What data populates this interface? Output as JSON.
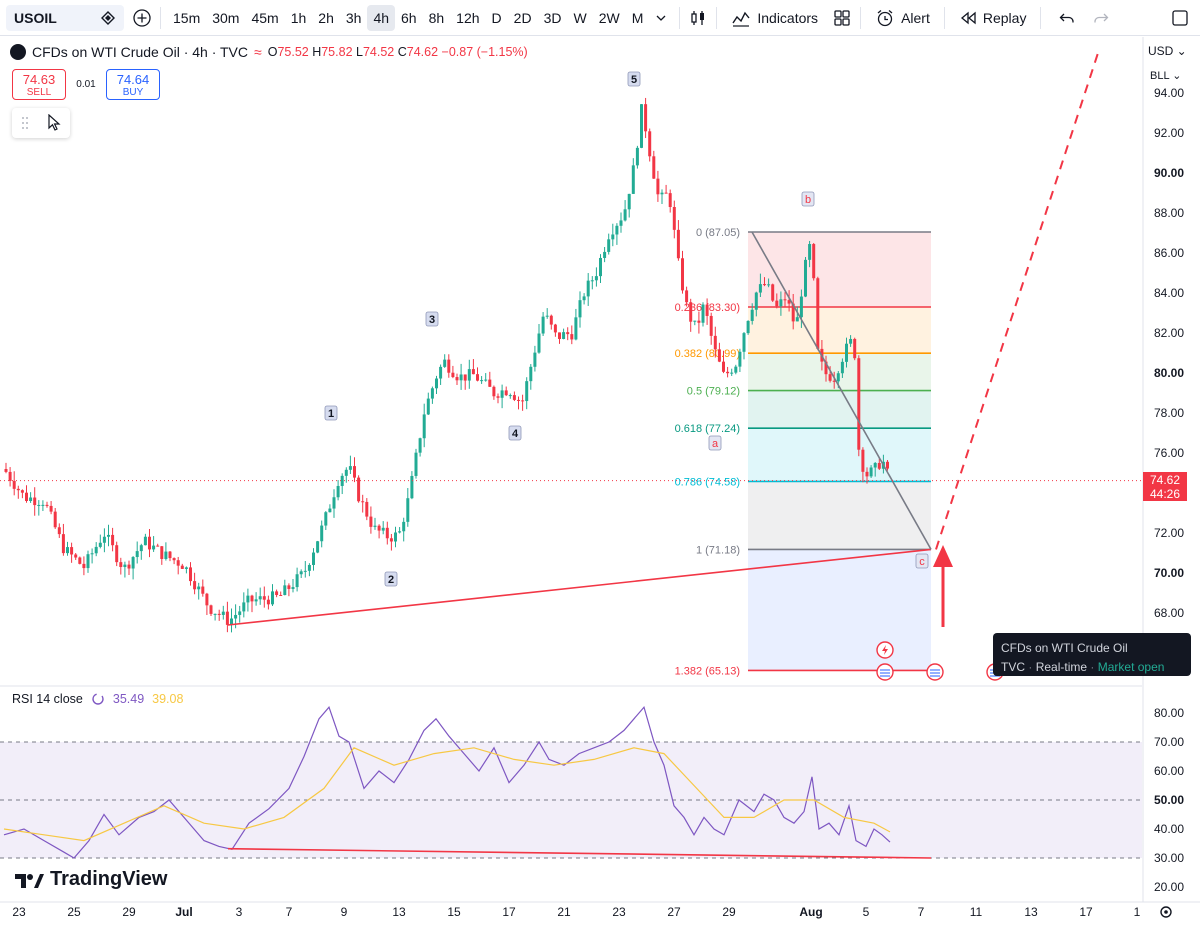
{
  "toolbar": {
    "symbol": "USOIL",
    "intervals": [
      "15m",
      "30m",
      "45m",
      "1h",
      "2h",
      "3h",
      "4h",
      "6h",
      "8h",
      "12h",
      "D",
      "2D",
      "3D",
      "W",
      "2W",
      "M"
    ],
    "active_interval": "4h",
    "indicators_label": "Indicators",
    "alert_label": "Alert",
    "replay_label": "Replay"
  },
  "legend": {
    "title": "CFDs on WTI Crude Oil · 4h · TVC",
    "o_label": "O",
    "o": "75.52",
    "h_label": "H",
    "h": "75.82",
    "l_label": "L",
    "l": "74.52",
    "c_label": "C",
    "c": "74.62",
    "change": "−0.87 (−1.15%)"
  },
  "trade": {
    "sell_price": "74.63",
    "sell_label": "SELL",
    "spread": "0.01",
    "buy_price": "74.64",
    "buy_label": "BUY"
  },
  "price_axis": {
    "currency": "USD",
    "unit": "BLL",
    "current_price": "74.62",
    "countdown": "44:26"
  },
  "rsi_legend": {
    "label": "RSI 14 close",
    "rsi_value": "35.49",
    "ma_value": "39.08"
  },
  "branding": {
    "logo_text": "TradingView"
  },
  "tooltip": {
    "name": "CFDs on WTI Crude Oil",
    "source": "TVC",
    "mode": "Real-time",
    "status": "Market open"
  },
  "colors": {
    "up": "#22ab94",
    "down": "#f23645",
    "rsi": "#7e57c2",
    "rsi_ma": "#f7c844",
    "accent": "#2962ff"
  },
  "chart_data": {
    "type": "candlestick",
    "symbol": "USOIL",
    "timeframe": "4h",
    "y_range": [
      64.0,
      96.0
    ],
    "y_ticks": [
      68,
      70,
      72,
      74,
      76,
      78,
      80,
      82,
      84,
      86,
      88,
      90,
      92,
      94
    ],
    "y_tick_labels": [
      "68.00",
      "70.00",
      "72.00",
      "74.00",
      "76.00",
      "78.00",
      "80.00",
      "82.00",
      "84.00",
      "86.00",
      "88.00",
      "90.00",
      "92.00",
      "94.00"
    ],
    "x_tick_labels": [
      "23",
      "25",
      "29",
      "Jul",
      "3",
      "7",
      "9",
      "13",
      "15",
      "17",
      "21",
      "23",
      "27",
      "29",
      "Aug",
      "5",
      "7",
      "11",
      "13",
      "17",
      "1"
    ],
    "price_path": [
      [
        0,
        75.2
      ],
      [
        20,
        73.8
      ],
      [
        40,
        73.6
      ],
      [
        60,
        71.2
      ],
      [
        80,
        70.3
      ],
      [
        100,
        72.0
      ],
      [
        120,
        70.2
      ],
      [
        140,
        71.6
      ],
      [
        160,
        70.9
      ],
      [
        180,
        70.4
      ],
      [
        205,
        68.3
      ],
      [
        225,
        67.6
      ],
      [
        245,
        68.6
      ],
      [
        275,
        68.8
      ],
      [
        300,
        70.0
      ],
      [
        320,
        72.5
      ],
      [
        335,
        74.8
      ],
      [
        345,
        75.3
      ],
      [
        355,
        73.8
      ],
      [
        370,
        72.2
      ],
      [
        385,
        71.8
      ],
      [
        395,
        71.9
      ],
      [
        405,
        73.8
      ],
      [
        420,
        78.0
      ],
      [
        432,
        79.8
      ],
      [
        440,
        80.6
      ],
      [
        455,
        79.8
      ],
      [
        470,
        79.9
      ],
      [
        490,
        79.0
      ],
      [
        505,
        79.2
      ],
      [
        518,
        78.5
      ],
      [
        530,
        81.0
      ],
      [
        540,
        83.0
      ],
      [
        552,
        81.8
      ],
      [
        568,
        82.0
      ],
      [
        580,
        84.0
      ],
      [
        592,
        85.0
      ],
      [
        605,
        87.0
      ],
      [
        620,
        88.0
      ],
      [
        630,
        90.3
      ],
      [
        638,
        93.3
      ],
      [
        646,
        91.0
      ],
      [
        655,
        88.6
      ],
      [
        665,
        89.0
      ],
      [
        675,
        85.2
      ],
      [
        684,
        83.0
      ],
      [
        692,
        82.2
      ],
      [
        700,
        83.4
      ],
      [
        710,
        81.2
      ],
      [
        720,
        79.8
      ],
      [
        732,
        80.5
      ],
      [
        742,
        82.5
      ],
      [
        752,
        84.0
      ],
      [
        762,
        84.5
      ],
      [
        772,
        83.2
      ],
      [
        782,
        83.8
      ],
      [
        792,
        82.2
      ],
      [
        800,
        85.0
      ],
      [
        808,
        86.8
      ],
      [
        812,
        81.3
      ],
      [
        820,
        80.0
      ],
      [
        830,
        79.8
      ],
      [
        840,
        81.0
      ],
      [
        850,
        81.8
      ],
      [
        855,
        76.0
      ],
      [
        862,
        74.9
      ],
      [
        870,
        75.1
      ],
      [
        878,
        75.7
      ],
      [
        886,
        74.6
      ]
    ],
    "wave_labels": [
      {
        "label": "1",
        "price": 78.0
      },
      {
        "label": "2",
        "price": 69.7
      },
      {
        "label": "3",
        "price": 82.7
      },
      {
        "label": "4",
        "price": 77.0
      },
      {
        "label": "5",
        "price": 94.7
      },
      {
        "label": "a",
        "price": 76.5
      },
      {
        "label": "b",
        "price": 88.7
      },
      {
        "label": "c",
        "price": 70.6
      }
    ],
    "fibonacci": {
      "levels": [
        {
          "ratio": "0",
          "price": 87.05,
          "label": "0 (87.05)"
        },
        {
          "ratio": "0.236",
          "price": 83.3,
          "label": "0.236 (83.30)"
        },
        {
          "ratio": "0.382",
          "price": 80.99,
          "label": "0.382 (80.99)"
        },
        {
          "ratio": "0.5",
          "price": 79.12,
          "label": "0.5 (79.12)"
        },
        {
          "ratio": "0.618",
          "price": 77.24,
          "label": "0.618 (77.24)"
        },
        {
          "ratio": "0.786",
          "price": 74.58,
          "label": "0.786 (74.58)"
        },
        {
          "ratio": "1",
          "price": 71.18,
          "label": "1 (71.18)"
        },
        {
          "ratio": "1.382",
          "price": 65.13,
          "label": "1.382 (65.13)"
        }
      ]
    },
    "trendline_support": {
      "from_price": 67.4,
      "to_price": 71.18
    },
    "projection_end_price": 96.0,
    "current_price": 74.62,
    "rsi": {
      "y_range": [
        17,
        85
      ],
      "y_ticks": [
        20,
        30,
        40,
        50,
        60,
        70,
        80
      ],
      "y_tick_labels": [
        "20.00",
        "30.00",
        "40.00",
        "50.00",
        "60.00",
        "70.00",
        "80.00"
      ],
      "overbought": 70,
      "middle": 50,
      "oversold": 30,
      "values": [
        [
          0,
          38
        ],
        [
          20,
          40
        ],
        [
          40,
          36
        ],
        [
          60,
          32
        ],
        [
          70,
          30
        ],
        [
          85,
          36
        ],
        [
          100,
          45
        ],
        [
          115,
          38
        ],
        [
          135,
          44
        ],
        [
          150,
          46
        ],
        [
          165,
          50
        ],
        [
          180,
          44
        ],
        [
          200,
          36
        ],
        [
          215,
          34
        ],
        [
          228,
          33
        ],
        [
          245,
          42
        ],
        [
          265,
          47
        ],
        [
          285,
          54
        ],
        [
          300,
          65
        ],
        [
          315,
          78
        ],
        [
          325,
          82
        ],
        [
          335,
          72
        ],
        [
          345,
          70
        ],
        [
          360,
          54
        ],
        [
          375,
          60
        ],
        [
          390,
          56
        ],
        [
          405,
          64
        ],
        [
          420,
          74
        ],
        [
          432,
          78
        ],
        [
          445,
          72
        ],
        [
          460,
          66
        ],
        [
          475,
          60
        ],
        [
          490,
          68
        ],
        [
          505,
          56
        ],
        [
          520,
          62
        ],
        [
          535,
          70
        ],
        [
          545,
          64
        ],
        [
          560,
          62
        ],
        [
          575,
          66
        ],
        [
          590,
          68
        ],
        [
          605,
          70
        ],
        [
          620,
          74
        ],
        [
          630,
          78
        ],
        [
          640,
          82
        ],
        [
          650,
          70
        ],
        [
          660,
          62
        ],
        [
          670,
          48
        ],
        [
          680,
          44
        ],
        [
          690,
          38
        ],
        [
          700,
          44
        ],
        [
          710,
          40
        ],
        [
          720,
          38
        ],
        [
          735,
          50
        ],
        [
          750,
          46
        ],
        [
          760,
          52
        ],
        [
          770,
          50
        ],
        [
          780,
          44
        ],
        [
          790,
          42
        ],
        [
          800,
          46
        ],
        [
          808,
          58
        ],
        [
          815,
          40
        ],
        [
          825,
          42
        ],
        [
          835,
          38
        ],
        [
          845,
          48
        ],
        [
          852,
          36
        ],
        [
          862,
          34
        ],
        [
          870,
          40
        ],
        [
          878,
          38
        ],
        [
          886,
          35.5
        ]
      ],
      "ma_values": [
        [
          0,
          40
        ],
        [
          40,
          38
        ],
        [
          80,
          36
        ],
        [
          120,
          42
        ],
        [
          160,
          48
        ],
        [
          200,
          42
        ],
        [
          240,
          40
        ],
        [
          280,
          44
        ],
        [
          320,
          54
        ],
        [
          350,
          68
        ],
        [
          390,
          62
        ],
        [
          430,
          66
        ],
        [
          470,
          68
        ],
        [
          510,
          64
        ],
        [
          550,
          62
        ],
        [
          590,
          64
        ],
        [
          630,
          68
        ],
        [
          660,
          66
        ],
        [
          690,
          55
        ],
        [
          720,
          44
        ],
        [
          750,
          44
        ],
        [
          780,
          50
        ],
        [
          810,
          50
        ],
        [
          840,
          44
        ],
        [
          870,
          42
        ],
        [
          886,
          39
        ]
      ],
      "divergence_line": {
        "from": 33.2,
        "to": 30.0
      }
    }
  }
}
